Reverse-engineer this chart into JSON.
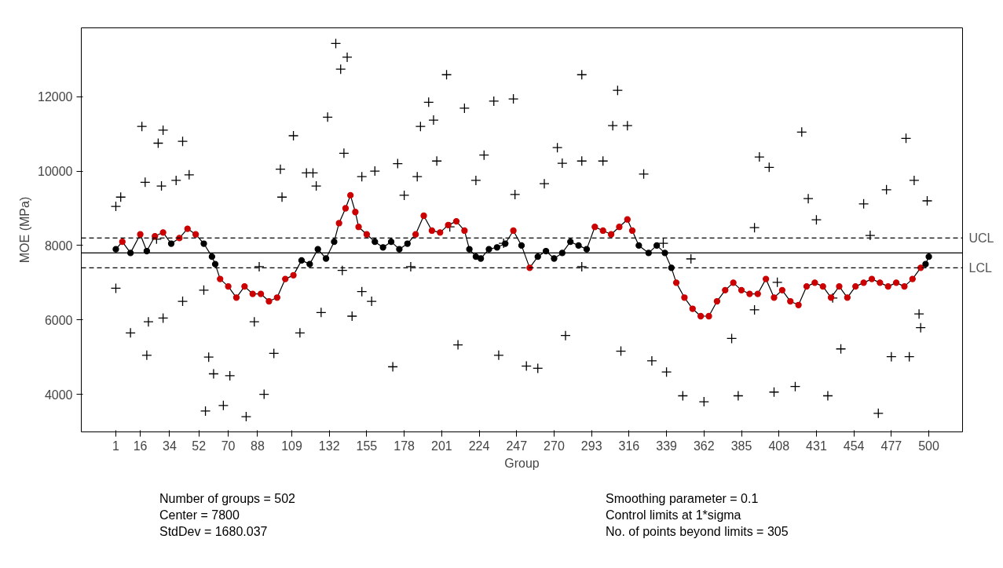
{
  "chart_data": {
    "type": "scatter",
    "xlabel": "Group",
    "ylabel": "MOE (MPa)",
    "xlim": [
      -20.2,
      520.7
    ],
    "ylim": [
      2990,
      13850
    ],
    "xticks": [
      1,
      16,
      34,
      52,
      70,
      88,
      109,
      132,
      155,
      178,
      201,
      224,
      247,
      270,
      293,
      316,
      339,
      362,
      385,
      408,
      431,
      454,
      477,
      500
    ],
    "yticks": [
      4000,
      6000,
      8000,
      10000,
      12000
    ],
    "grid": false,
    "series": [
      {
        "marker": "cross",
        "color": "#000000",
        "x": [
          1,
          1,
          4,
          10,
          17,
          19,
          20,
          21,
          27,
          30,
          29,
          30,
          42,
          42,
          38,
          46,
          56,
          58,
          61,
          67,
          71,
          81,
          86,
          92,
          98,
          102,
          103,
          110,
          114,
          118,
          122,
          124,
          127,
          131,
          136,
          139,
          143,
          141,
          146,
          152,
          152,
          158,
          160,
          171,
          174,
          178,
          186,
          188,
          193,
          196,
          198,
          204,
          206,
          211,
          215,
          222,
          227,
          233,
          236,
          245,
          246,
          253,
          260,
          264,
          272,
          275,
          277,
          287,
          287,
          300,
          306,
          309,
          315,
          311,
          325,
          330,
          339,
          349,
          362,
          379,
          383,
          393,
          396,
          402,
          405,
          418,
          422,
          426,
          438,
          446,
          460,
          469,
          474,
          477,
          486,
          488,
          491,
          494,
          499,
          495,
          26,
          55,
          89,
          140,
          182,
          239,
          287,
          337,
          354,
          393,
          431,
          464,
          441,
          407
        ],
        "values": [
          9050,
          6850,
          9300,
          5650,
          11200,
          9700,
          5050,
          5950,
          10750,
          11100,
          9600,
          6050,
          10800,
          6500,
          9750,
          9900,
          3550,
          5000,
          4550,
          3700,
          4500,
          3400,
          5950,
          4000,
          5100,
          10050,
          9300,
          10950,
          5650,
          9950,
          9950,
          9600,
          6200,
          11450,
          13430,
          12740,
          13060,
          10480,
          6100,
          9850,
          6760,
          6500,
          10000,
          4740,
          10200,
          9350,
          9850,
          11200,
          11850,
          11370,
          10270,
          12590,
          8500,
          5330,
          11690,
          9750,
          10430,
          11880,
          5050,
          11940,
          9370,
          4760,
          4700,
          9660,
          10630,
          10210,
          5580,
          12590,
          10270,
          10270,
          11220,
          12170,
          11220,
          5160,
          9920,
          4900,
          4600,
          3960,
          3800,
          5500,
          3960,
          6270,
          10380,
          10100,
          4060,
          4210,
          11050,
          9260,
          3960,
          5220,
          9120,
          3490,
          9500,
          5010,
          10880,
          5010,
          9750,
          6160,
          9200,
          5790,
          8170,
          6800,
          7430,
          7330,
          7430,
          8060,
          7430,
          8060,
          7640,
          8480,
          8690,
          8270,
          6590,
          7010
        ]
      },
      {
        "type": "line",
        "marker": "circle",
        "color": "#000000",
        "x": [
          1,
          5,
          10,
          16,
          20,
          25,
          30,
          35,
          40,
          45,
          50,
          55,
          60,
          62,
          65,
          70,
          75,
          80,
          85,
          90,
          95,
          100,
          105,
          110,
          115,
          120,
          125,
          130,
          135,
          138,
          142,
          145,
          148,
          150,
          155,
          160,
          165,
          170,
          175,
          180,
          185,
          190,
          195,
          200,
          205,
          210,
          215,
          218,
          222,
          225,
          230,
          235,
          240,
          245,
          250,
          255,
          260,
          265,
          270,
          275,
          280,
          285,
          290,
          295,
          300,
          305,
          310,
          315,
          318,
          322,
          328,
          333,
          338,
          342,
          345,
          350,
          355,
          360,
          365,
          370,
          375,
          380,
          385,
          390,
          395,
          400,
          405,
          410,
          415,
          420,
          425,
          430,
          435,
          440,
          445,
          450,
          455,
          460,
          465,
          470,
          475,
          480,
          485,
          490,
          495,
          498,
          500
        ],
        "values": [
          7900,
          8100,
          7800,
          8300,
          7850,
          8250,
          8350,
          8050,
          8200,
          8450,
          8300,
          8050,
          7700,
          7500,
          7100,
          6900,
          6600,
          6900,
          6700,
          6700,
          6500,
          6600,
          7100,
          7200,
          7600,
          7500,
          7900,
          7650,
          8100,
          8600,
          9000,
          9350,
          8900,
          8500,
          8300,
          8100,
          7950,
          8100,
          7900,
          8050,
          8300,
          8800,
          8400,
          8350,
          8550,
          8650,
          8400,
          7900,
          7700,
          7650,
          7900,
          7950,
          8050,
          8400,
          8000,
          7400,
          7700,
          7850,
          7650,
          7800,
          8100,
          8000,
          7900,
          8500,
          8400,
          8300,
          8500,
          8700,
          8400,
          8000,
          7800,
          8000,
          7800,
          7400,
          7000,
          6600,
          6300,
          6100,
          6100,
          6500,
          6800,
          7000,
          6800,
          6700,
          6700,
          7100,
          6600,
          6800,
          6500,
          6400,
          6900,
          7000,
          6900,
          6600,
          6900,
          6600,
          6900,
          7000,
          7100,
          7000,
          6900,
          7000,
          6900,
          7100,
          7400,
          7500,
          7700
        ],
        "colors": [
          "#000000",
          "#cc0000",
          "#000000",
          "#cc0000",
          "#000000",
          "#cc0000",
          "#cc0000",
          "#000000",
          "#cc0000",
          "#cc0000",
          "#cc0000",
          "#000000",
          "#000000",
          "#000000",
          "#cc0000",
          "#cc0000",
          "#cc0000",
          "#cc0000",
          "#cc0000",
          "#cc0000",
          "#cc0000",
          "#cc0000",
          "#cc0000",
          "#cc0000",
          "#000000",
          "#000000",
          "#000000",
          "#000000",
          "#000000",
          "#cc0000",
          "#cc0000",
          "#cc0000",
          "#cc0000",
          "#cc0000",
          "#cc0000",
          "#000000",
          "#000000",
          "#000000",
          "#000000",
          "#000000",
          "#cc0000",
          "#cc0000",
          "#cc0000",
          "#cc0000",
          "#cc0000",
          "#cc0000",
          "#cc0000",
          "#000000",
          "#000000",
          "#000000",
          "#000000",
          "#000000",
          "#000000",
          "#cc0000",
          "#000000",
          "#cc0000",
          "#000000",
          "#000000",
          "#000000",
          "#000000",
          "#000000",
          "#000000",
          "#000000",
          "#cc0000",
          "#cc0000",
          "#cc0000",
          "#cc0000",
          "#cc0000",
          "#cc0000",
          "#000000",
          "#000000",
          "#000000",
          "#000000",
          "#000000",
          "#cc0000",
          "#cc0000",
          "#cc0000",
          "#cc0000",
          "#cc0000",
          "#cc0000",
          "#cc0000",
          "#cc0000",
          "#cc0000",
          "#cc0000",
          "#cc0000",
          "#cc0000",
          "#cc0000",
          "#cc0000",
          "#cc0000",
          "#cc0000",
          "#cc0000",
          "#cc0000",
          "#cc0000",
          "#cc0000",
          "#cc0000",
          "#cc0000",
          "#cc0000",
          "#cc0000",
          "#cc0000",
          "#cc0000",
          "#cc0000",
          "#cc0000",
          "#cc0000",
          "#cc0000",
          "#cc0000",
          "#000000",
          "#000000"
        ]
      }
    ],
    "ref_lines": [
      {
        "axis": "y",
        "value": 7800,
        "label": null,
        "line_style": "solid",
        "color": "#000000"
      },
      {
        "axis": "y",
        "value": 8200,
        "label": "UCL",
        "line_style": "dashed",
        "color": "#000000"
      },
      {
        "axis": "y",
        "value": 7400,
        "label": "LCL",
        "line_style": "dashed",
        "color": "#000000"
      }
    ],
    "annotations": [
      "Number of groups = 502",
      "Center = 7800",
      "StdDev = 1680.037",
      "Smoothing parameter =  0.1",
      "Control limits at 1*sigma",
      "No. of points beyond limits = 305"
    ]
  }
}
